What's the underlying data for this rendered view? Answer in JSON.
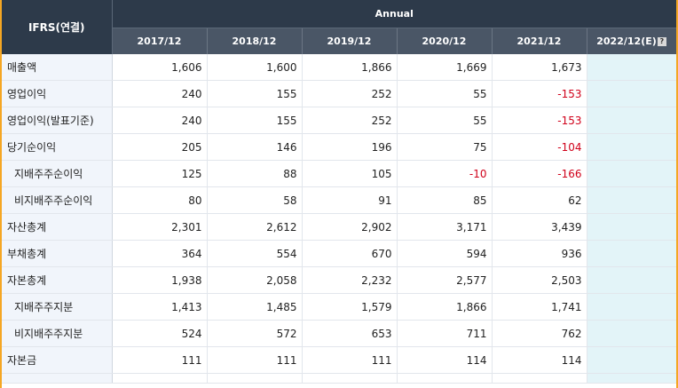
{
  "header": {
    "corner_label": "IFRS(연결)",
    "period_label": "Annual",
    "years": [
      "2017/12",
      "2018/12",
      "2019/12",
      "2020/12",
      "2021/12"
    ],
    "estimate_year": "2022/12(E)"
  },
  "rows": [
    {
      "label": "매출액",
      "sub": false,
      "values": [
        "1,606",
        "1,600",
        "1,866",
        "1,669",
        "1,673"
      ]
    },
    {
      "label": "영업이익",
      "sub": false,
      "values": [
        "240",
        "155",
        "252",
        "55",
        "-153"
      ]
    },
    {
      "label": "영업이익(발표기준)",
      "sub": false,
      "values": [
        "240",
        "155",
        "252",
        "55",
        "-153"
      ]
    },
    {
      "label": "당기순이익",
      "sub": false,
      "values": [
        "205",
        "146",
        "196",
        "75",
        "-104"
      ]
    },
    {
      "label": "지배주주순이익",
      "sub": true,
      "values": [
        "125",
        "88",
        "105",
        "-10",
        "-166"
      ]
    },
    {
      "label": "비지배주주순이익",
      "sub": true,
      "values": [
        "80",
        "58",
        "91",
        "85",
        "62"
      ]
    },
    {
      "label": "자산총계",
      "sub": false,
      "values": [
        "2,301",
        "2,612",
        "2,902",
        "3,171",
        "3,439"
      ]
    },
    {
      "label": "부채총계",
      "sub": false,
      "values": [
        "364",
        "554",
        "670",
        "594",
        "936"
      ]
    },
    {
      "label": "자본총계",
      "sub": false,
      "values": [
        "1,938",
        "2,058",
        "2,232",
        "2,577",
        "2,503"
      ]
    },
    {
      "label": "지배주주지분",
      "sub": true,
      "values": [
        "1,413",
        "1,485",
        "1,579",
        "1,866",
        "1,741"
      ]
    },
    {
      "label": "비지배주주지분",
      "sub": true,
      "values": [
        "524",
        "572",
        "653",
        "711",
        "762"
      ]
    },
    {
      "label": "자본금",
      "sub": false,
      "values": [
        "111",
        "111",
        "111",
        "114",
        "114"
      ]
    }
  ],
  "colors": {
    "negative": "#d0021b",
    "estimate_bg": "#e3f4f8",
    "header_bg": "#2d3a4a"
  }
}
